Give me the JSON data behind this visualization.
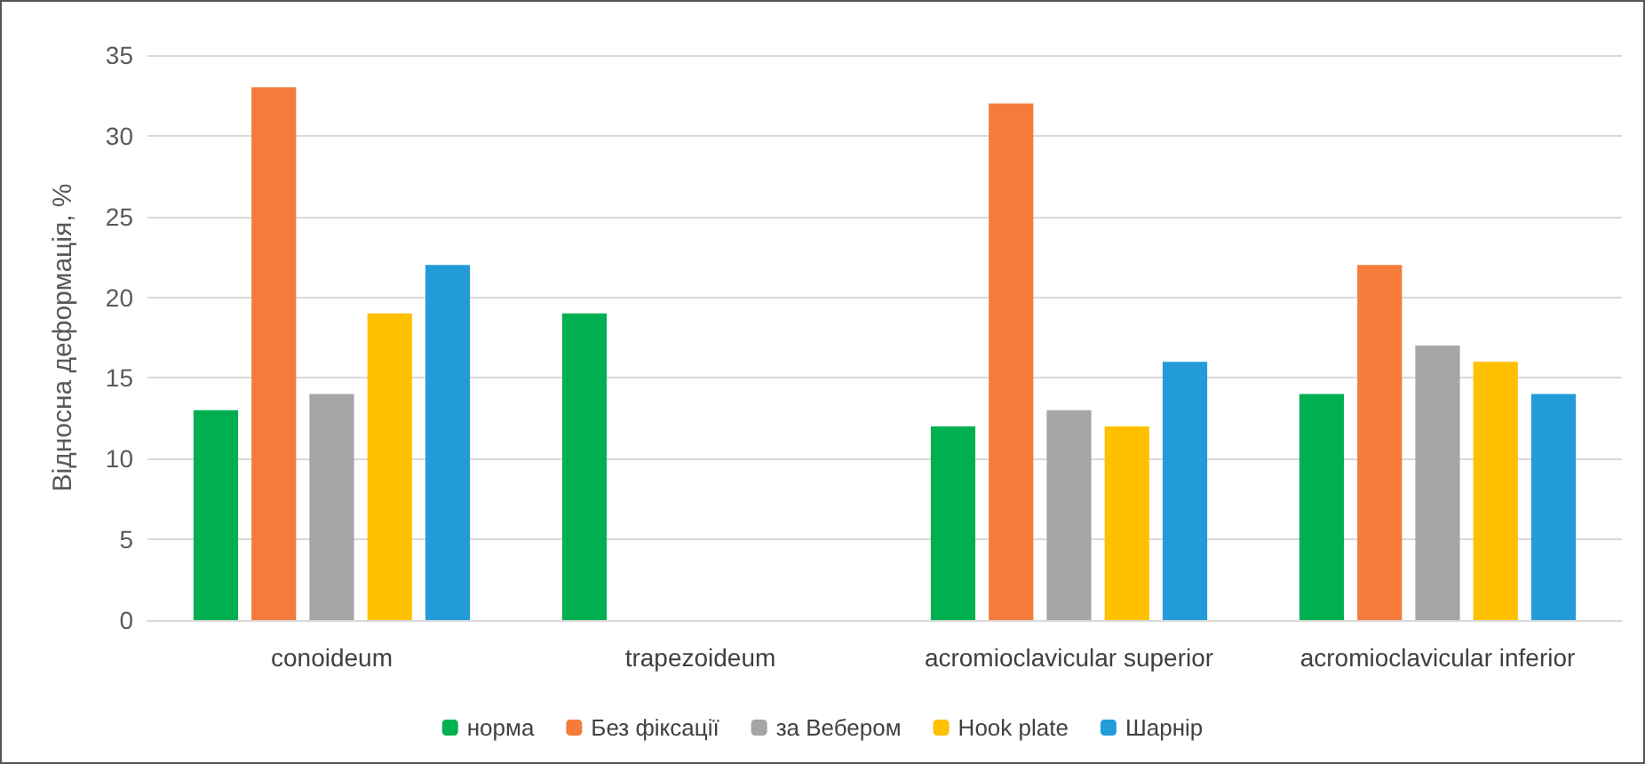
{
  "chart_data": {
    "type": "bar",
    "ylabel": "Відносна деформація, %",
    "categories": [
      "conoideum",
      "trapezoideum",
      "acromioclavicular superior",
      "acromioclavicular inferior"
    ],
    "series": [
      {
        "name": "норма",
        "color": "#00b050",
        "values": [
          13,
          19,
          12,
          14
        ]
      },
      {
        "name": "Без фіксації",
        "color": "#f47b3a",
        "values": [
          33,
          null,
          32,
          22
        ]
      },
      {
        "name": "за Вебером",
        "color": "#a5a5a5",
        "values": [
          14,
          null,
          13,
          17
        ]
      },
      {
        "name": "Hook plate",
        "color": "#ffc000",
        "values": [
          19,
          null,
          12,
          16
        ]
      },
      {
        "name": "Шарнір",
        "color": "#239bd9",
        "values": [
          22,
          null,
          16,
          14
        ]
      }
    ],
    "ylim": [
      0,
      35
    ],
    "yticks": [
      0,
      5,
      10,
      15,
      20,
      25,
      30,
      35
    ],
    "grid": "y",
    "legend": "bottom"
  }
}
